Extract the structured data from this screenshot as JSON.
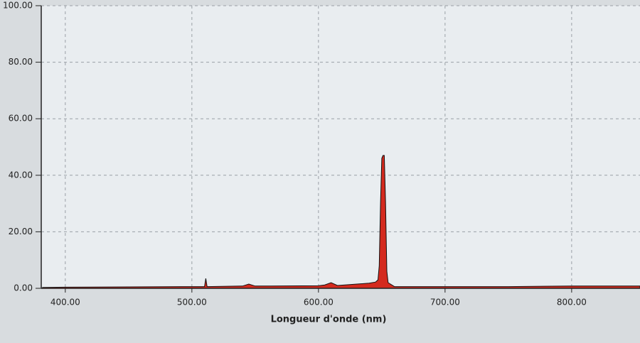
{
  "chart_data": {
    "type": "area",
    "x_label": "Longueur d'onde (nm)",
    "x": [
      382,
      400,
      450,
      500,
      510,
      511,
      512,
      540,
      545,
      550,
      600,
      605,
      610,
      615,
      640,
      645,
      647,
      648,
      649,
      650,
      651,
      652,
      653,
      654,
      655,
      660,
      700,
      750,
      800,
      854
    ],
    "series": [
      {
        "color": "#d42a1e",
        "values": [
          0.3,
          0.4,
          0.5,
          0.6,
          0.6,
          3.5,
          0.6,
          0.8,
          1.5,
          0.8,
          0.9,
          1.2,
          2,
          1,
          1.8,
          2.2,
          3,
          8,
          30,
          46,
          47,
          47,
          30,
          6,
          2,
          0.6,
          0.6,
          0.6,
          0.8,
          0.8
        ]
      }
    ],
    "xlim": [
      381,
      854
    ],
    "ylim": [
      0,
      100
    ],
    "xticks": [
      {
        "value": 400,
        "label": "400.00"
      },
      {
        "value": 500,
        "label": "500.00"
      },
      {
        "value": 600,
        "label": "600.00"
      },
      {
        "value": 700,
        "label": "700.00"
      },
      {
        "value": 800,
        "label": "800.00"
      }
    ],
    "yticks": [
      {
        "value": 0,
        "label": "0.00"
      },
      {
        "value": 20,
        "label": "20.00"
      },
      {
        "value": 40,
        "label": "40.00"
      },
      {
        "value": 60,
        "label": "60.00"
      },
      {
        "value": 80,
        "label": "80.00"
      },
      {
        "value": 100,
        "label": "100.00"
      }
    ],
    "grid": true
  }
}
